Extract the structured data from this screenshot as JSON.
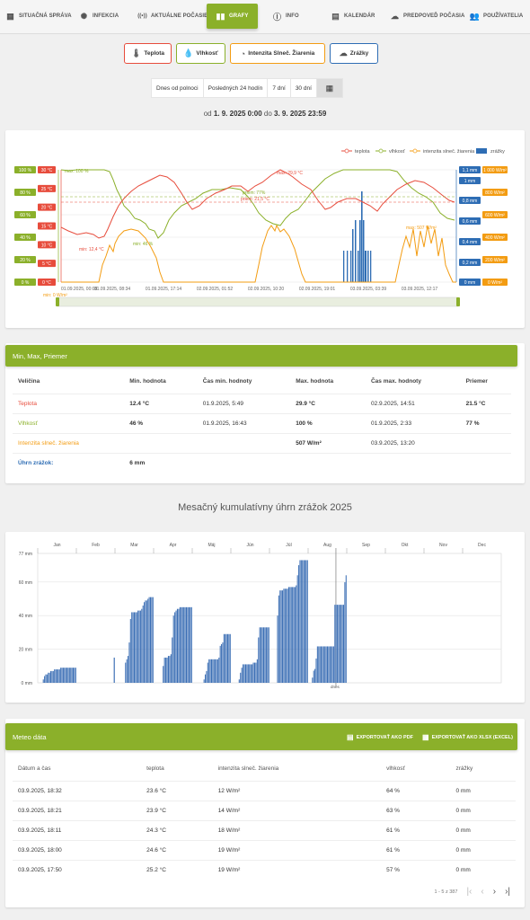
{
  "nav": [
    {
      "label": "SITUAČNÁ SPRÁVA",
      "icon": "map-icon",
      "x": 6
    },
    {
      "label": "INFEKCIA",
      "icon": "virus-icon",
      "x": 88
    },
    {
      "label": "AKTUÁLNE POČASIE",
      "icon": "broadcast-icon",
      "x": 153
    },
    {
      "label": "GRAFY",
      "icon": "bar-chart-icon",
      "x": 230,
      "active": true
    },
    {
      "label": "INFO",
      "icon": "info-icon",
      "x": 303
    },
    {
      "label": "KALENDÁR",
      "icon": "calendar-icon",
      "x": 368
    },
    {
      "label": "PREDPOVEĎ POČASIA",
      "icon": "cloud-icon",
      "x": 434
    },
    {
      "label": "POUŽÍVATELIA",
      "icon": "users-icon",
      "x": 523
    }
  ],
  "filters": [
    {
      "label": "Teplota",
      "color": "#e74c3c",
      "icon": "thermometer-icon"
    },
    {
      "label": "Vlhkosť",
      "color": "#8bb02a",
      "icon": "droplet-icon"
    },
    {
      "label": "Intenzita Slneč. Žiarenia",
      "color": "#f39c12",
      "icon": "sun-gauge-icon"
    },
    {
      "label": "Zrážky",
      "color": "#2e6db4",
      "icon": "rain-cloud-icon"
    }
  ],
  "ranges": [
    "Dnes od polnoci",
    "Posledných 24 hodín",
    "7 dní",
    "30 dní"
  ],
  "period": {
    "prefix": "od",
    "from": "1. 9. 2025 0:00",
    "mid": "do",
    "to": "3. 9. 2025 23:59"
  },
  "main_chart": {
    "legend": [
      "teplota",
      "vlhkosť",
      "intenzita slneč. žiarenia",
      "zrážky"
    ],
    "y_humidity": [
      "100 %",
      "80 %",
      "60 %",
      "40 %",
      "20 %",
      "0 %"
    ],
    "y_temp": [
      "30 °C",
      "25 °C",
      "20 °C",
      "15 °C",
      "10 °C",
      "5 °C",
      "0 °C"
    ],
    "y_rain": [
      "1,1 mm",
      "1 mm",
      "0,8 mm",
      "0,6 mm",
      "0,4 mm",
      "0,2 mm",
      "0 mm"
    ],
    "y_solar": [
      "1 000 W/m²",
      "800 W/m²",
      "600 W/m²",
      "400 W/m²",
      "200 W/m²",
      "0 W/m²"
    ],
    "x_labels": [
      "01.09.2025, 00:08",
      "01.09.2025, 08:34",
      "01.09.2025, 17:14",
      "02.09.2025, 01:52",
      "02.09.2025, 10:20",
      "02.09.2025, 19:01",
      "03.09.2025, 03:39",
      "03.09.2025, 12:17"
    ],
    "annotations": {
      "max_hum": "max: 100 %",
      "min_temp": "min: 12,4 °C",
      "min_hum": "min: 46 %",
      "max_temp": "max: 29,9 °C",
      "avg_hum": "priem: 77%",
      "avg_temp": "priem: 21,5 °C",
      "max_solar": "max: 507 W/m²",
      "min_solar": "min: 0 W/m²"
    }
  },
  "stats": {
    "title": "Min, Max, Priemer",
    "headers": [
      "Veličina",
      "Min. hodnota",
      "Čas min. hodnoty",
      "Max. hodnota",
      "Čas max. hodnoty",
      "Priemer"
    ],
    "rows": [
      {
        "name": "Teplota",
        "color": "#e74c3c",
        "min": "12.4 °C",
        "min_time": "01.9.2025, 5:49",
        "max": "29.9 °C",
        "max_time": "02.9.2025, 14:51",
        "avg": "21.5 °C"
      },
      {
        "name": "Vlhkosť",
        "color": "#8bb02a",
        "min": "46 %",
        "min_time": "01.9.2025, 16:43",
        "max": "100 %",
        "max_time": "01.9.2025, 2:33",
        "avg": "77 %"
      },
      {
        "name": "Intenzita slneč. žiarenia",
        "color": "#f39c12",
        "min": "",
        "min_time": "",
        "max": "507 W/m²",
        "max_time": "03.9.2025, 13:20",
        "avg": ""
      },
      {
        "name": "Úhrn zrážok:",
        "color": "#2e6db4",
        "min": "6 mm",
        "min_time": "",
        "max": "",
        "max_time": "",
        "avg": ""
      }
    ]
  },
  "monthly": {
    "title": "Mesačný kumulatívny úhrn zrážok 2025",
    "months": [
      "Jan",
      "Feb",
      "Mar",
      "Apr",
      "Máj",
      "Jún",
      "Júl",
      "Aug",
      "Sep",
      "Okt",
      "Nov",
      "Dec"
    ],
    "y_labels": [
      "77 mm",
      "60 mm",
      "40 mm",
      "20 mm",
      "0 mm"
    ],
    "today_label": "dnes"
  },
  "chart_data": {
    "type": "bar",
    "title": "Mesačný kumulatívny úhrn zrážok 2025",
    "xlabel": "",
    "ylabel": "",
    "ylim": [
      0,
      77
    ],
    "categories": [
      "Jan",
      "Feb",
      "Mar",
      "Apr",
      "Máj",
      "Jún",
      "Júl",
      "Aug"
    ],
    "values": [
      9,
      15,
      51,
      45,
      29,
      33,
      73,
      64
    ]
  },
  "meteo": {
    "title": "Meteo dáta",
    "export_pdf": "EXPORTOVAŤ AKO PDF",
    "export_xls": "EXPORTOVAŤ AKO XLSX (EXCEL)",
    "headers": [
      "Dátum a čas",
      "teplota",
      "intenzita slneč. žiarenia",
      "vlhkosť",
      "zrážky"
    ],
    "rows": [
      [
        "03.9.2025, 18:32",
        "23.6 °C",
        "12 W/m²",
        "64 %",
        "0 mm"
      ],
      [
        "03.9.2025, 18:21",
        "23.9 °C",
        "14 W/m²",
        "63 %",
        "0 mm"
      ],
      [
        "03.9.2025, 18:11",
        "24.3 °C",
        "18 W/m²",
        "61 %",
        "0 mm"
      ],
      [
        "03.9.2025, 18:00",
        "24.6 °C",
        "19 W/m²",
        "61 %",
        "0 mm"
      ],
      [
        "03.9.2025, 17:50",
        "25.2 °C",
        "19 W/m²",
        "57 %",
        "0 mm"
      ]
    ],
    "pagination": "1 - 5 z 387"
  }
}
